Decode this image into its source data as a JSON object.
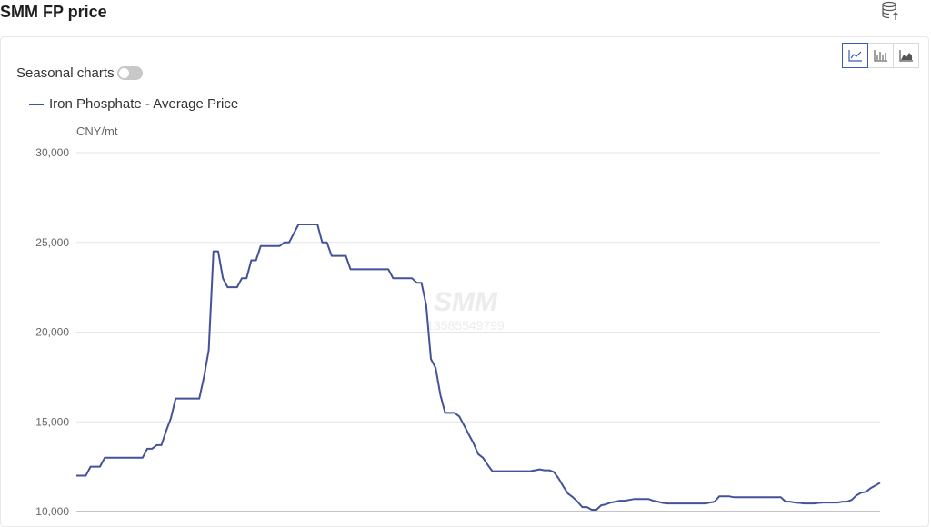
{
  "header": {
    "title": "SMM FP price"
  },
  "controls": {
    "seasonal_label": "Seasonal charts",
    "seasonal_enabled": false,
    "chart_type_options": [
      "line",
      "bar",
      "area"
    ],
    "chart_type_selected": "line"
  },
  "watermark": {
    "brand": "SMM",
    "number": "13585549799"
  },
  "chart_data": {
    "type": "line",
    "unit": "CNY/mt",
    "ylim": [
      10000,
      30000
    ],
    "yticks": [
      "30,000",
      "25,000",
      "20,000",
      "15,000",
      "10,000"
    ],
    "ytick_values": [
      30000,
      25000,
      20000,
      15000,
      10000
    ],
    "grid": true,
    "legend_position": "top-left",
    "series": [
      {
        "name": "Iron Phosphate - Average Price",
        "color": "#44529a",
        "values": [
          12000,
          12000,
          12000,
          12500,
          12500,
          12500,
          13000,
          13000,
          13000,
          13000,
          13000,
          13000,
          13000,
          13000,
          13000,
          13500,
          13500,
          13700,
          13700,
          14500,
          15200,
          16300,
          16300,
          16300,
          16300,
          16300,
          16300,
          17500,
          19000,
          24500,
          24500,
          23000,
          22500,
          22500,
          22500,
          23000,
          23000,
          24000,
          24000,
          24800,
          24800,
          24800,
          24800,
          24800,
          25000,
          25000,
          25500,
          26000,
          26000,
          26000,
          26000,
          26000,
          25000,
          25000,
          24250,
          24250,
          24250,
          24250,
          23500,
          23500,
          23500,
          23500,
          23500,
          23500,
          23500,
          23500,
          23500,
          23000,
          23000,
          23000,
          23000,
          23000,
          22750,
          22750,
          21500,
          18500,
          18000,
          16500,
          15500,
          15500,
          15500,
          15300,
          14800,
          14300,
          13800,
          13200,
          13000,
          12600,
          12250,
          12250,
          12250,
          12250,
          12250,
          12250,
          12250,
          12250,
          12250,
          12300,
          12350,
          12300,
          12300,
          12200,
          11850,
          11400,
          11000,
          10800,
          10550,
          10250,
          10250,
          10100,
          10100,
          10350,
          10400,
          10500,
          10550,
          10600,
          10600,
          10650,
          10700,
          10700,
          10700,
          10700,
          10600,
          10550,
          10480,
          10450,
          10450,
          10450,
          10450,
          10450,
          10450,
          10450,
          10450,
          10450,
          10500,
          10550,
          10850,
          10850,
          10850,
          10800,
          10800,
          10800,
          10800,
          10800,
          10800,
          10800,
          10800,
          10800,
          10800,
          10800,
          10550,
          10550,
          10500,
          10480,
          10450,
          10450,
          10450,
          10480,
          10500,
          10500,
          10500,
          10500,
          10550,
          10550,
          10650,
          10900,
          11050,
          11100,
          11300,
          11450,
          11600
        ]
      }
    ]
  }
}
